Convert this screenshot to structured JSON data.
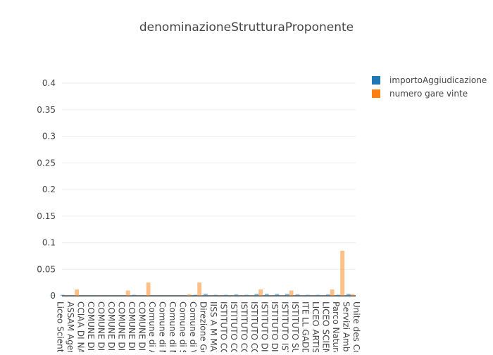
{
  "chart_data": {
    "type": "bar",
    "title": "denominazioneStrutturaProponente",
    "categories": [
      "Liceo Scient",
      "ASSAM Agen",
      "CCIAA DI NAP",
      "COMUNE DI",
      "COMUNE DI",
      "COMUNE DI",
      "COMUNE DI",
      "COMUNE DI",
      "COMUNE DI",
      "Comune di A",
      "Comune di M",
      "Comune di M",
      "Comune di S",
      "Comune di V",
      "Direzione Ge",
      "IISS A M MAZ",
      "ISTITUTO CO",
      "ISTITUTO CO",
      "ISTITUTO CO",
      "ISTITUTO CO",
      "ISTITUTO DI",
      "ISTITUTO DIS",
      "ISTITUTO IST",
      "ISTITUTO SUP",
      "ITE LL GADD",
      "LICEO ARTIST",
      "LICEO SCIENT",
      "Parco Natura",
      "Servizi Ambie",
      "Unite des Co"
    ],
    "series": [
      {
        "name": "importoAggiudicazione",
        "color": "#1f77b4",
        "values": [
          0.001,
          0.002,
          0.001,
          0.001,
          0.001,
          0.001,
          0.001,
          0.001,
          0.002,
          0.001,
          0.001,
          0.001,
          0.001,
          0.001,
          0.002,
          0.004,
          0.002,
          0.002,
          0.003,
          0.002,
          0.004,
          0.004,
          0.004,
          0.004,
          0.003,
          0.002,
          0.002,
          0.003,
          0.002,
          0.004
        ]
      },
      {
        "name": "numero gare vinte",
        "color": "#ff7f0e",
        "values": [
          0,
          0,
          0.012,
          0,
          0,
          0,
          0,
          0.01,
          0,
          0.025,
          0,
          0,
          0,
          0.003,
          0.025,
          0,
          0,
          0,
          0,
          0,
          0.012,
          0,
          0,
          0.01,
          0,
          0,
          0,
          0.012,
          0.085,
          0.003
        ]
      }
    ],
    "ylim": [
      0,
      0.4
    ],
    "yticks": [
      0,
      0.05,
      0.1,
      0.15,
      0.2,
      0.25,
      0.3,
      0.35,
      0.4
    ],
    "grid": true,
    "legend": "top-right"
  }
}
